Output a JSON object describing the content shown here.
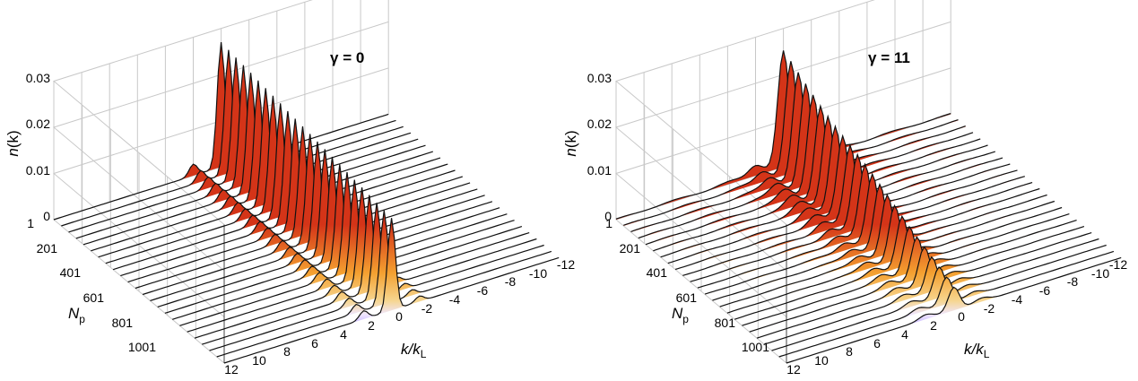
{
  "chart_data": [
    {
      "type": "waterfall3d",
      "title": "γ = 0",
      "title_symbol": "γ",
      "title_rest": " = 0",
      "zlabel_main": "n",
      "zlabel_rest": "(k)",
      "xlabel_main": "k",
      "xlabel_mid": "/k",
      "xlabel_sub": "L",
      "ylabel_main": "N",
      "ylabel_sub": "p",
      "zlim": [
        0,
        0.03
      ],
      "z_ticks": [
        "0",
        "0.01",
        "0.02",
        "0.03"
      ],
      "x_range": [
        -12,
        12
      ],
      "x_ticks": [
        "12",
        "10",
        "8",
        "6",
        "4",
        "2",
        "0",
        "-2",
        "-4",
        "-6",
        "-8",
        "-10",
        "-12"
      ],
      "y_ticks": [
        "1",
        "201",
        "401",
        "601",
        "801",
        "1001"
      ],
      "n_traces": 24,
      "gamma": 0,
      "peaks": [
        {
          "k": 0,
          "height_start": 0.027,
          "height_end": 0.02,
          "width": 0.28
        },
        {
          "k": 2,
          "height_start": 0.0025,
          "height_end": 0.0018,
          "width": 0.3
        },
        {
          "k": -2,
          "height_start": 0.0016,
          "height_end": 0.0012,
          "width": 0.3
        }
      ],
      "colors": {
        "low": "#8a72ff",
        "mid": "#f6d690",
        "orange": "#f4a030",
        "high": "#d43418"
      }
    },
    {
      "type": "waterfall3d",
      "title": "γ = 11",
      "title_symbol": "γ",
      "title_rest": " = 11",
      "zlabel_main": "n",
      "zlabel_rest": "(k)",
      "xlabel_main": "k",
      "xlabel_mid": "/k",
      "xlabel_sub": "L",
      "ylabel_main": "N",
      "ylabel_sub": "p",
      "zlim": [
        0,
        0.03
      ],
      "z_ticks": [
        "0",
        "0.01",
        "0.02",
        "0.03"
      ],
      "x_range": [
        -12,
        12
      ],
      "x_ticks": [
        "12",
        "10",
        "8",
        "6",
        "4",
        "2",
        "0",
        "-2",
        "-4",
        "-6",
        "-8",
        "-10",
        "-12"
      ],
      "y_ticks": [
        "1",
        "201",
        "401",
        "601",
        "801",
        "1001"
      ],
      "n_traces": 24,
      "gamma": 11,
      "peaks": [
        {
          "k": 0,
          "height_start": 0.024,
          "height_end": 0.005,
          "width": 0.4
        },
        {
          "k": 2,
          "height_start": 0.0022,
          "height_end": 0.001,
          "width": 0.5
        },
        {
          "k": -2,
          "height_start": 0.0012,
          "height_end": 0.0008,
          "width": 0.5
        }
      ],
      "colors": {
        "low": "#8a72ff",
        "mid": "#f6d690",
        "orange": "#f4a030",
        "high": "#d43418"
      }
    }
  ]
}
